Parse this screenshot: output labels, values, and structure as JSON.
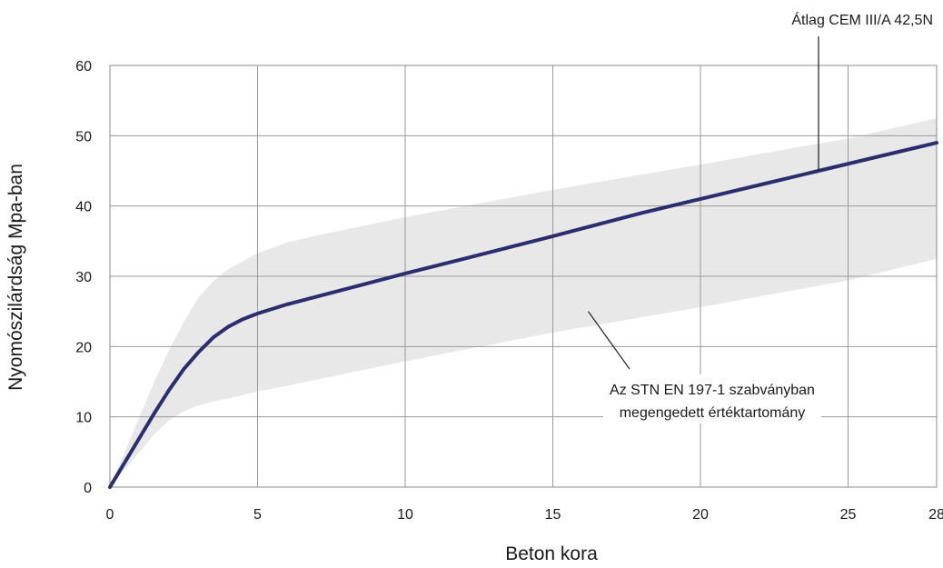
{
  "chart_data": {
    "type": "line",
    "xlabel": "Beton kora",
    "ylabel": "Nyomószilárdság Mpa-ban",
    "xlim": [
      0,
      28
    ],
    "ylim": [
      0,
      60
    ],
    "x_ticks": [
      0,
      5,
      10,
      15,
      20,
      25,
      28
    ],
    "y_ticks": [
      0,
      10,
      20,
      30,
      40,
      50,
      60
    ],
    "grid": true,
    "series": [
      {
        "name": "Átlag CEM III/A 42,5N",
        "color": "#2b2d6e",
        "x": [
          0,
          0.5,
          1,
          1.5,
          2,
          2.5,
          3,
          3.5,
          4,
          4.5,
          5,
          6,
          7,
          8,
          10,
          12,
          15,
          18,
          20,
          22,
          24,
          26,
          28
        ],
        "y": [
          0,
          3.5,
          7,
          10.5,
          13.8,
          16.8,
          19.2,
          21.3,
          22.8,
          23.9,
          24.7,
          26.0,
          27.1,
          28.2,
          30.4,
          32.5,
          35.7,
          39.0,
          41.0,
          43.0,
          45.0,
          47.0,
          49.0
        ]
      }
    ],
    "band": {
      "name": "Az STN EN 197-1 szabványban megengedett értéktartomány",
      "color": "#e8e8e8",
      "x": [
        0,
        0.5,
        1,
        1.5,
        2,
        2.5,
        3,
        3.5,
        4,
        5,
        6,
        7,
        10,
        15,
        20,
        25,
        28
      ],
      "upper": [
        0,
        5,
        10,
        15,
        19.5,
        23.5,
        27.0,
        29.3,
        31.0,
        33.3,
        34.8,
        35.8,
        38.4,
        42.3,
        45.9,
        49.6,
        52.5
      ],
      "lower": [
        0,
        2.5,
        5,
        7.5,
        9.5,
        10.8,
        11.6,
        12.2,
        12.6,
        13.6,
        14.4,
        15.3,
        17.9,
        22.0,
        25.6,
        29.4,
        32.5
      ]
    },
    "annotations": [
      {
        "text": "Átlag CEM III/A 42,5N",
        "target": "series"
      },
      {
        "text_lines": [
          "Az STN EN 197-1 szabványban",
          "megengedett értéktartomány"
        ],
        "target": "band"
      }
    ]
  }
}
